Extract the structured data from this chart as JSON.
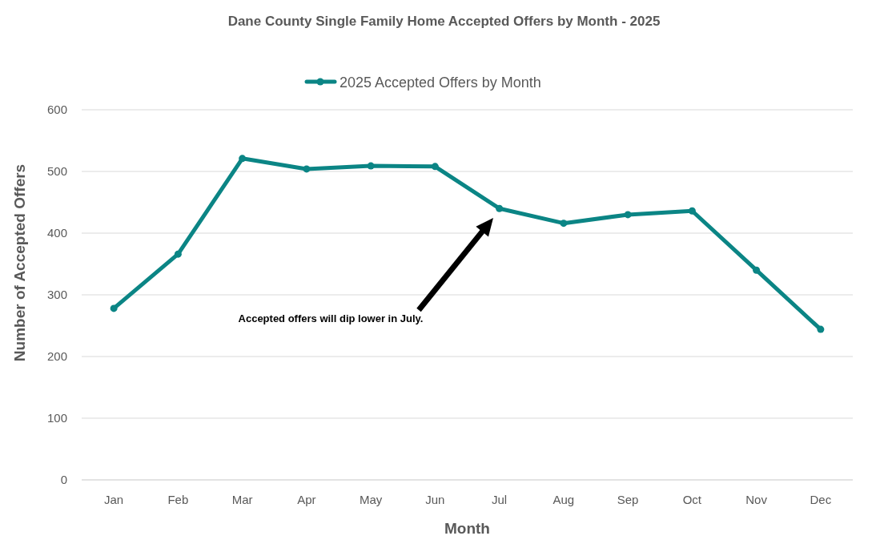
{
  "chart_data": {
    "type": "line",
    "title": "Dane County Single Family Home Accepted Offers by Month - 2025",
    "xlabel": "Month",
    "ylabel": "Number of Accepted Offers",
    "categories": [
      "Jan",
      "Feb",
      "Mar",
      "Apr",
      "May",
      "Jun",
      "Jul",
      "Aug",
      "Sep",
      "Oct",
      "Nov",
      "Dec"
    ],
    "series": [
      {
        "name": "2025 Accepted Offers by Month",
        "color": "#0b8585",
        "values": [
          278,
          366,
          521,
          504,
          509,
          508,
          440,
          416,
          430,
          436,
          340,
          244
        ]
      }
    ],
    "ylim": [
      0,
      600
    ],
    "yticks": [
      0,
      100,
      200,
      300,
      400,
      500,
      600
    ],
    "grid": "y",
    "legend": "top",
    "marker": "circle",
    "line_style": "solid",
    "annotations": [
      "Accepted offers will dip lower in July."
    ]
  }
}
